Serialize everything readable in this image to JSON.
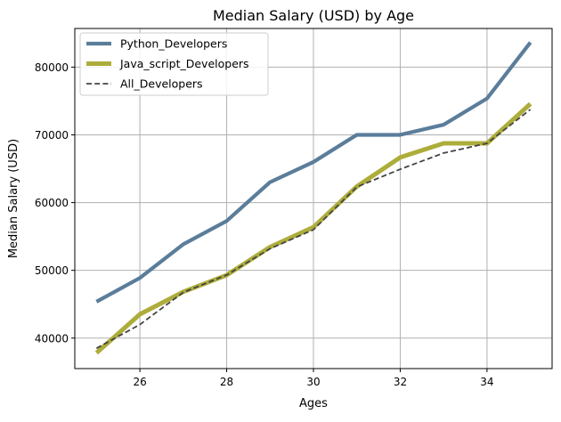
{
  "chart_data": {
    "type": "line",
    "title": "Median Salary (USD) by Age",
    "xlabel": "Ages",
    "ylabel": "Median Salary (USD)",
    "x": [
      25,
      26,
      27,
      28,
      29,
      30,
      31,
      32,
      33,
      34,
      35
    ],
    "xlim": [
      24.5,
      35.5
    ],
    "ylim": [
      35500,
      85700
    ],
    "xticks": [
      26,
      28,
      30,
      32,
      34
    ],
    "yticks": [
      40000,
      50000,
      60000,
      70000,
      80000
    ],
    "grid": true,
    "legend_position": "top-left",
    "series": [
      {
        "name": "Python_Developers",
        "color": "#5a7d9a",
        "style": "solid-thick",
        "values": [
          45372,
          48876,
          53850,
          57287,
          63016,
          65998,
          70003,
          70000,
          71496,
          75370,
          83640
        ]
      },
      {
        "name": "Java_script_Developers",
        "color": "#adad3b",
        "style": "solid-thicker",
        "values": [
          37810,
          43515,
          46823,
          49293,
          53437,
          56373,
          62375,
          66674,
          68745,
          68746,
          74583
        ]
      },
      {
        "name": "All_Developers",
        "color": "#444444",
        "style": "dashed",
        "values": [
          38496,
          42000,
          46752,
          49320,
          53200,
          56000,
          62316,
          64928,
          67317,
          68748,
          73752
        ]
      }
    ]
  }
}
